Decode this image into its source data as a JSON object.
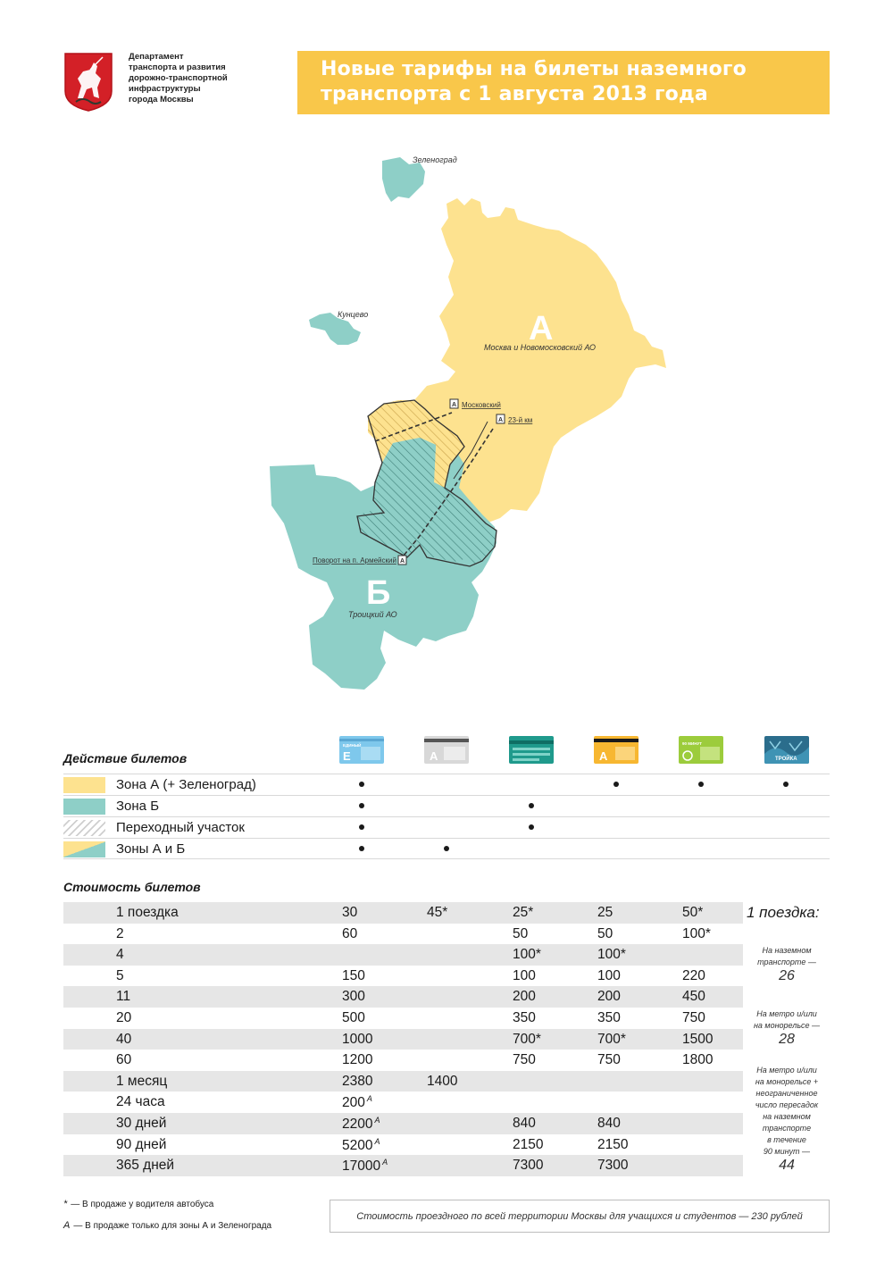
{
  "header": {
    "department_lines": [
      "Департамент",
      "транспорта и развития",
      "дорожно-транспортной",
      "инфраструктуры",
      "города Москвы"
    ],
    "title_lines": [
      "Новые тарифы на билеты наземного",
      "транспорта с 1 августа 2013 года"
    ]
  },
  "colors": {
    "zone_a": "#fde28f",
    "zone_b": "#8ecfc7",
    "title_bg": "#f9c74a",
    "row_shade": "#e6e6e6"
  },
  "map": {
    "zone_a_letter": "А",
    "zone_b_letter": "Б",
    "labels": {
      "zelenograd": "Зеленоград",
      "kuntsevo": "Кунцево",
      "moscow": "Москва и Новомосковский АО",
      "troitsky": "Троицкий АО"
    },
    "stops": {
      "marker": "А",
      "moskovsky": "Московский",
      "km23": "23-й км",
      "armeysky": "Поворот на п. Армейский"
    }
  },
  "validity": {
    "title": "Действие билетов",
    "tickets": [
      {
        "icon": "edinyi-ticket-icon",
        "text": "ЕДИНЫЙ",
        "letter": "Е"
      },
      {
        "icon": "driver-ticket-icon",
        "text": "",
        "letter": "А"
      },
      {
        "icon": "ground-transport-ticket-icon",
        "text": "",
        "letter": ""
      },
      {
        "icon": "tat-ticket-icon",
        "text": "",
        "letter": "А"
      },
      {
        "icon": "90-minutes-ticket-icon",
        "text": "90 МИНУТ",
        "letter": ""
      },
      {
        "icon": "troika-card-icon",
        "text": "ТРОЙКА",
        "letter": ""
      }
    ],
    "zones": [
      {
        "label": "Зона А (+ Зеленоград)",
        "swatch": "a",
        "marks": [
          true,
          false,
          false,
          true,
          true,
          true
        ]
      },
      {
        "label": "Зона Б",
        "swatch": "b",
        "marks": [
          true,
          false,
          true,
          false,
          false,
          false
        ]
      },
      {
        "label": "Переходный участок",
        "swatch": "hatch",
        "marks": [
          true,
          false,
          true,
          false,
          false,
          false
        ]
      },
      {
        "label": "Зоны А и Б",
        "swatch": "ab",
        "marks": [
          true,
          true,
          false,
          false,
          false,
          false
        ]
      }
    ]
  },
  "prices": {
    "title": "Стоимость билетов",
    "rows": [
      {
        "label": "1 поездка",
        "cells": [
          {
            "v": "30"
          },
          {
            "v": "45*"
          },
          {
            "v": "25*"
          },
          {
            "v": "25"
          },
          {
            "v": "50*"
          }
        ]
      },
      {
        "label": "2",
        "cells": [
          {
            "v": "60"
          },
          {
            "v": ""
          },
          {
            "v": "50"
          },
          {
            "v": "50"
          },
          {
            "v": "100*"
          }
        ]
      },
      {
        "label": "4",
        "cells": [
          {
            "v": ""
          },
          {
            "v": ""
          },
          {
            "v": "100*"
          },
          {
            "v": "100*"
          },
          {
            "v": ""
          }
        ]
      },
      {
        "label": "5",
        "cells": [
          {
            "v": "150"
          },
          {
            "v": ""
          },
          {
            "v": "100"
          },
          {
            "v": "100"
          },
          {
            "v": "220"
          }
        ]
      },
      {
        "label": "11",
        "cells": [
          {
            "v": "300"
          },
          {
            "v": ""
          },
          {
            "v": "200"
          },
          {
            "v": "200"
          },
          {
            "v": "450"
          }
        ]
      },
      {
        "label": "20",
        "cells": [
          {
            "v": "500"
          },
          {
            "v": ""
          },
          {
            "v": "350"
          },
          {
            "v": "350"
          },
          {
            "v": "750"
          }
        ]
      },
      {
        "label": "40",
        "cells": [
          {
            "v": "1000"
          },
          {
            "v": ""
          },
          {
            "v": "700*"
          },
          {
            "v": "700*"
          },
          {
            "v": "1500"
          }
        ]
      },
      {
        "label": "60",
        "cells": [
          {
            "v": "1200"
          },
          {
            "v": ""
          },
          {
            "v": "750"
          },
          {
            "v": "750"
          },
          {
            "v": "1800"
          }
        ]
      },
      {
        "label": "1 месяц",
        "cells": [
          {
            "v": "2380"
          },
          {
            "v": "1400"
          },
          {
            "v": ""
          },
          {
            "v": ""
          },
          {
            "v": ""
          }
        ]
      },
      {
        "label": "24 часа",
        "cells": [
          {
            "v": "200",
            "sup": "A"
          },
          {
            "v": ""
          },
          {
            "v": ""
          },
          {
            "v": ""
          },
          {
            "v": ""
          }
        ]
      },
      {
        "label": "30 дней",
        "cells": [
          {
            "v": "2200",
            "sup": "A"
          },
          {
            "v": ""
          },
          {
            "v": "840"
          },
          {
            "v": "840"
          },
          {
            "v": ""
          }
        ]
      },
      {
        "label": "90 дней",
        "cells": [
          {
            "v": "5200",
            "sup": "A"
          },
          {
            "v": ""
          },
          {
            "v": "2150"
          },
          {
            "v": "2150"
          },
          {
            "v": ""
          }
        ]
      },
      {
        "label": "365 дней",
        "cells": [
          {
            "v": "17000",
            "sup": "A"
          },
          {
            "v": ""
          },
          {
            "v": "7300"
          },
          {
            "v": "7300"
          },
          {
            "v": ""
          }
        ]
      }
    ]
  },
  "troika_side": {
    "heading": "1 поездка:",
    "ground_lines": [
      "На наземном",
      "транспорте —"
    ],
    "ground_price": "26",
    "metro_lines": [
      "На метро и/или",
      "на монорельсе —"
    ],
    "metro_price": "28",
    "combo_lines": [
      "На метро и/или",
      "на монорельсе +",
      "неограниченное",
      "число пересадок",
      "на наземном",
      "транспорте",
      "в течение",
      "90 минут —"
    ],
    "combo_price": "44"
  },
  "notes": {
    "star_mark": "*",
    "star_text": "— В продаже у водителя автобуса",
    "a_mark": "А",
    "a_text": "— В продаже только для зоны А и Зеленограда"
  },
  "footer": "Стоимость проездного по всей территории Москвы для учащихся и студентов — 230 рублей"
}
